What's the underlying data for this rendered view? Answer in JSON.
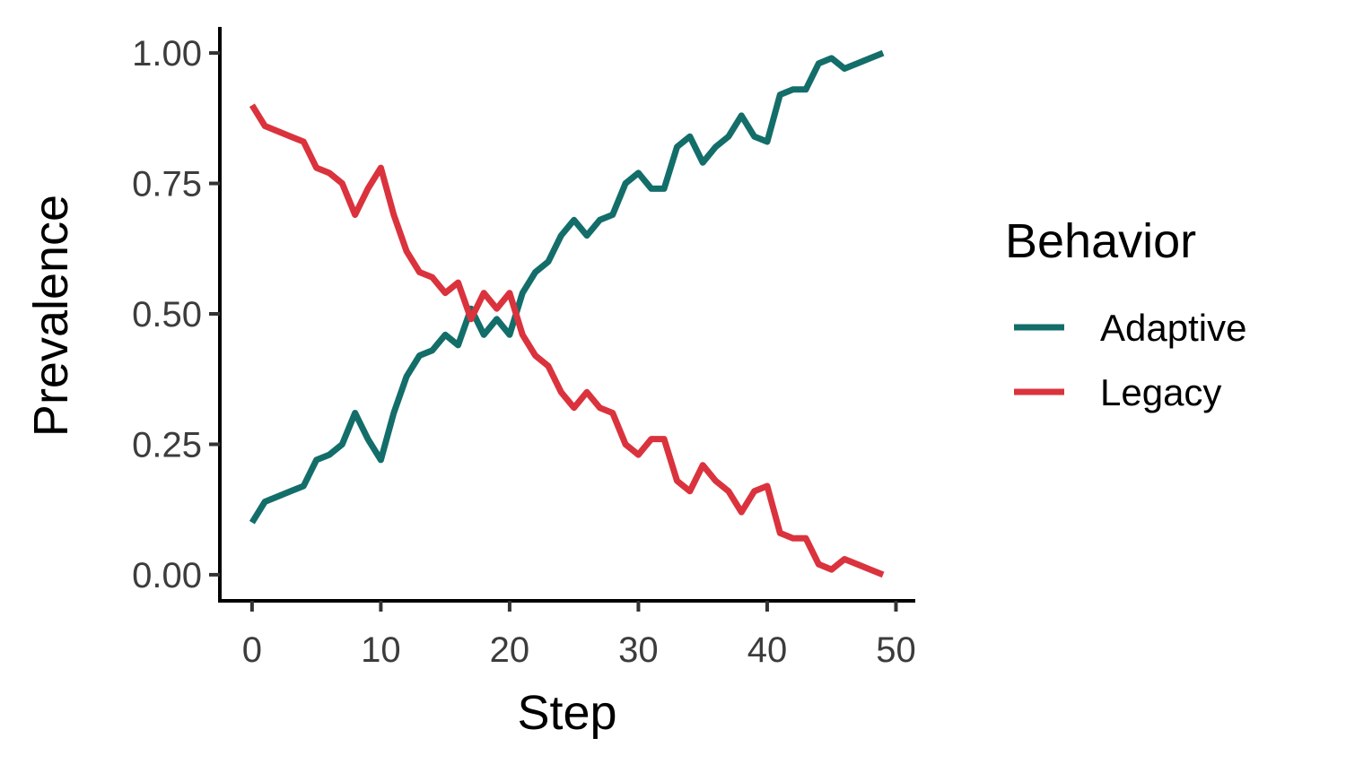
{
  "chart_data": {
    "type": "line",
    "xlabel": "Step",
    "ylabel": "Prevalence",
    "xlim": [
      -2.5,
      51.5
    ],
    "ylim": [
      -0.05,
      1.05
    ],
    "x_ticks": [
      0,
      10,
      20,
      30,
      40,
      50
    ],
    "y_ticks": [
      0.0,
      0.25,
      0.5,
      0.75,
      1.0
    ],
    "x_tick_labels": [
      "0",
      "10",
      "20",
      "30",
      "40",
      "50"
    ],
    "y_tick_labels": [
      "0.00",
      "0.25",
      "0.50",
      "0.75",
      "1.00"
    ],
    "grid": false,
    "legend": {
      "title": "Behavior",
      "position": "right"
    },
    "x": [
      0,
      1,
      2,
      3,
      4,
      5,
      6,
      7,
      8,
      9,
      10,
      11,
      12,
      13,
      14,
      15,
      16,
      17,
      18,
      19,
      20,
      21,
      22,
      23,
      24,
      25,
      26,
      27,
      28,
      29,
      30,
      31,
      32,
      33,
      34,
      35,
      36,
      37,
      38,
      39,
      40,
      41,
      42,
      43,
      44,
      45,
      46,
      47,
      48,
      49
    ],
    "series": [
      {
        "name": "Adaptive",
        "color": "#136e6a",
        "values": [
          0.1,
          0.14,
          0.15,
          0.16,
          0.17,
          0.22,
          0.23,
          0.25,
          0.31,
          0.26,
          0.22,
          0.31,
          0.38,
          0.42,
          0.43,
          0.46,
          0.44,
          0.51,
          0.46,
          0.49,
          0.46,
          0.54,
          0.58,
          0.6,
          0.65,
          0.68,
          0.65,
          0.68,
          0.69,
          0.75,
          0.77,
          0.74,
          0.74,
          0.82,
          0.84,
          0.79,
          0.82,
          0.84,
          0.88,
          0.84,
          0.83,
          0.92,
          0.93,
          0.93,
          0.98,
          0.99,
          0.97,
          0.98,
          0.99,
          1.0
        ]
      },
      {
        "name": "Legacy",
        "color": "#da333d",
        "values": [
          0.9,
          0.86,
          0.85,
          0.84,
          0.83,
          0.78,
          0.77,
          0.75,
          0.69,
          0.74,
          0.78,
          0.69,
          0.62,
          0.58,
          0.57,
          0.54,
          0.56,
          0.49,
          0.54,
          0.51,
          0.54,
          0.46,
          0.42,
          0.4,
          0.35,
          0.32,
          0.35,
          0.32,
          0.31,
          0.25,
          0.23,
          0.26,
          0.26,
          0.18,
          0.16,
          0.21,
          0.18,
          0.16,
          0.12,
          0.16,
          0.17,
          0.08,
          0.07,
          0.07,
          0.02,
          0.01,
          0.03,
          0.02,
          0.01,
          0.0
        ]
      }
    ]
  }
}
